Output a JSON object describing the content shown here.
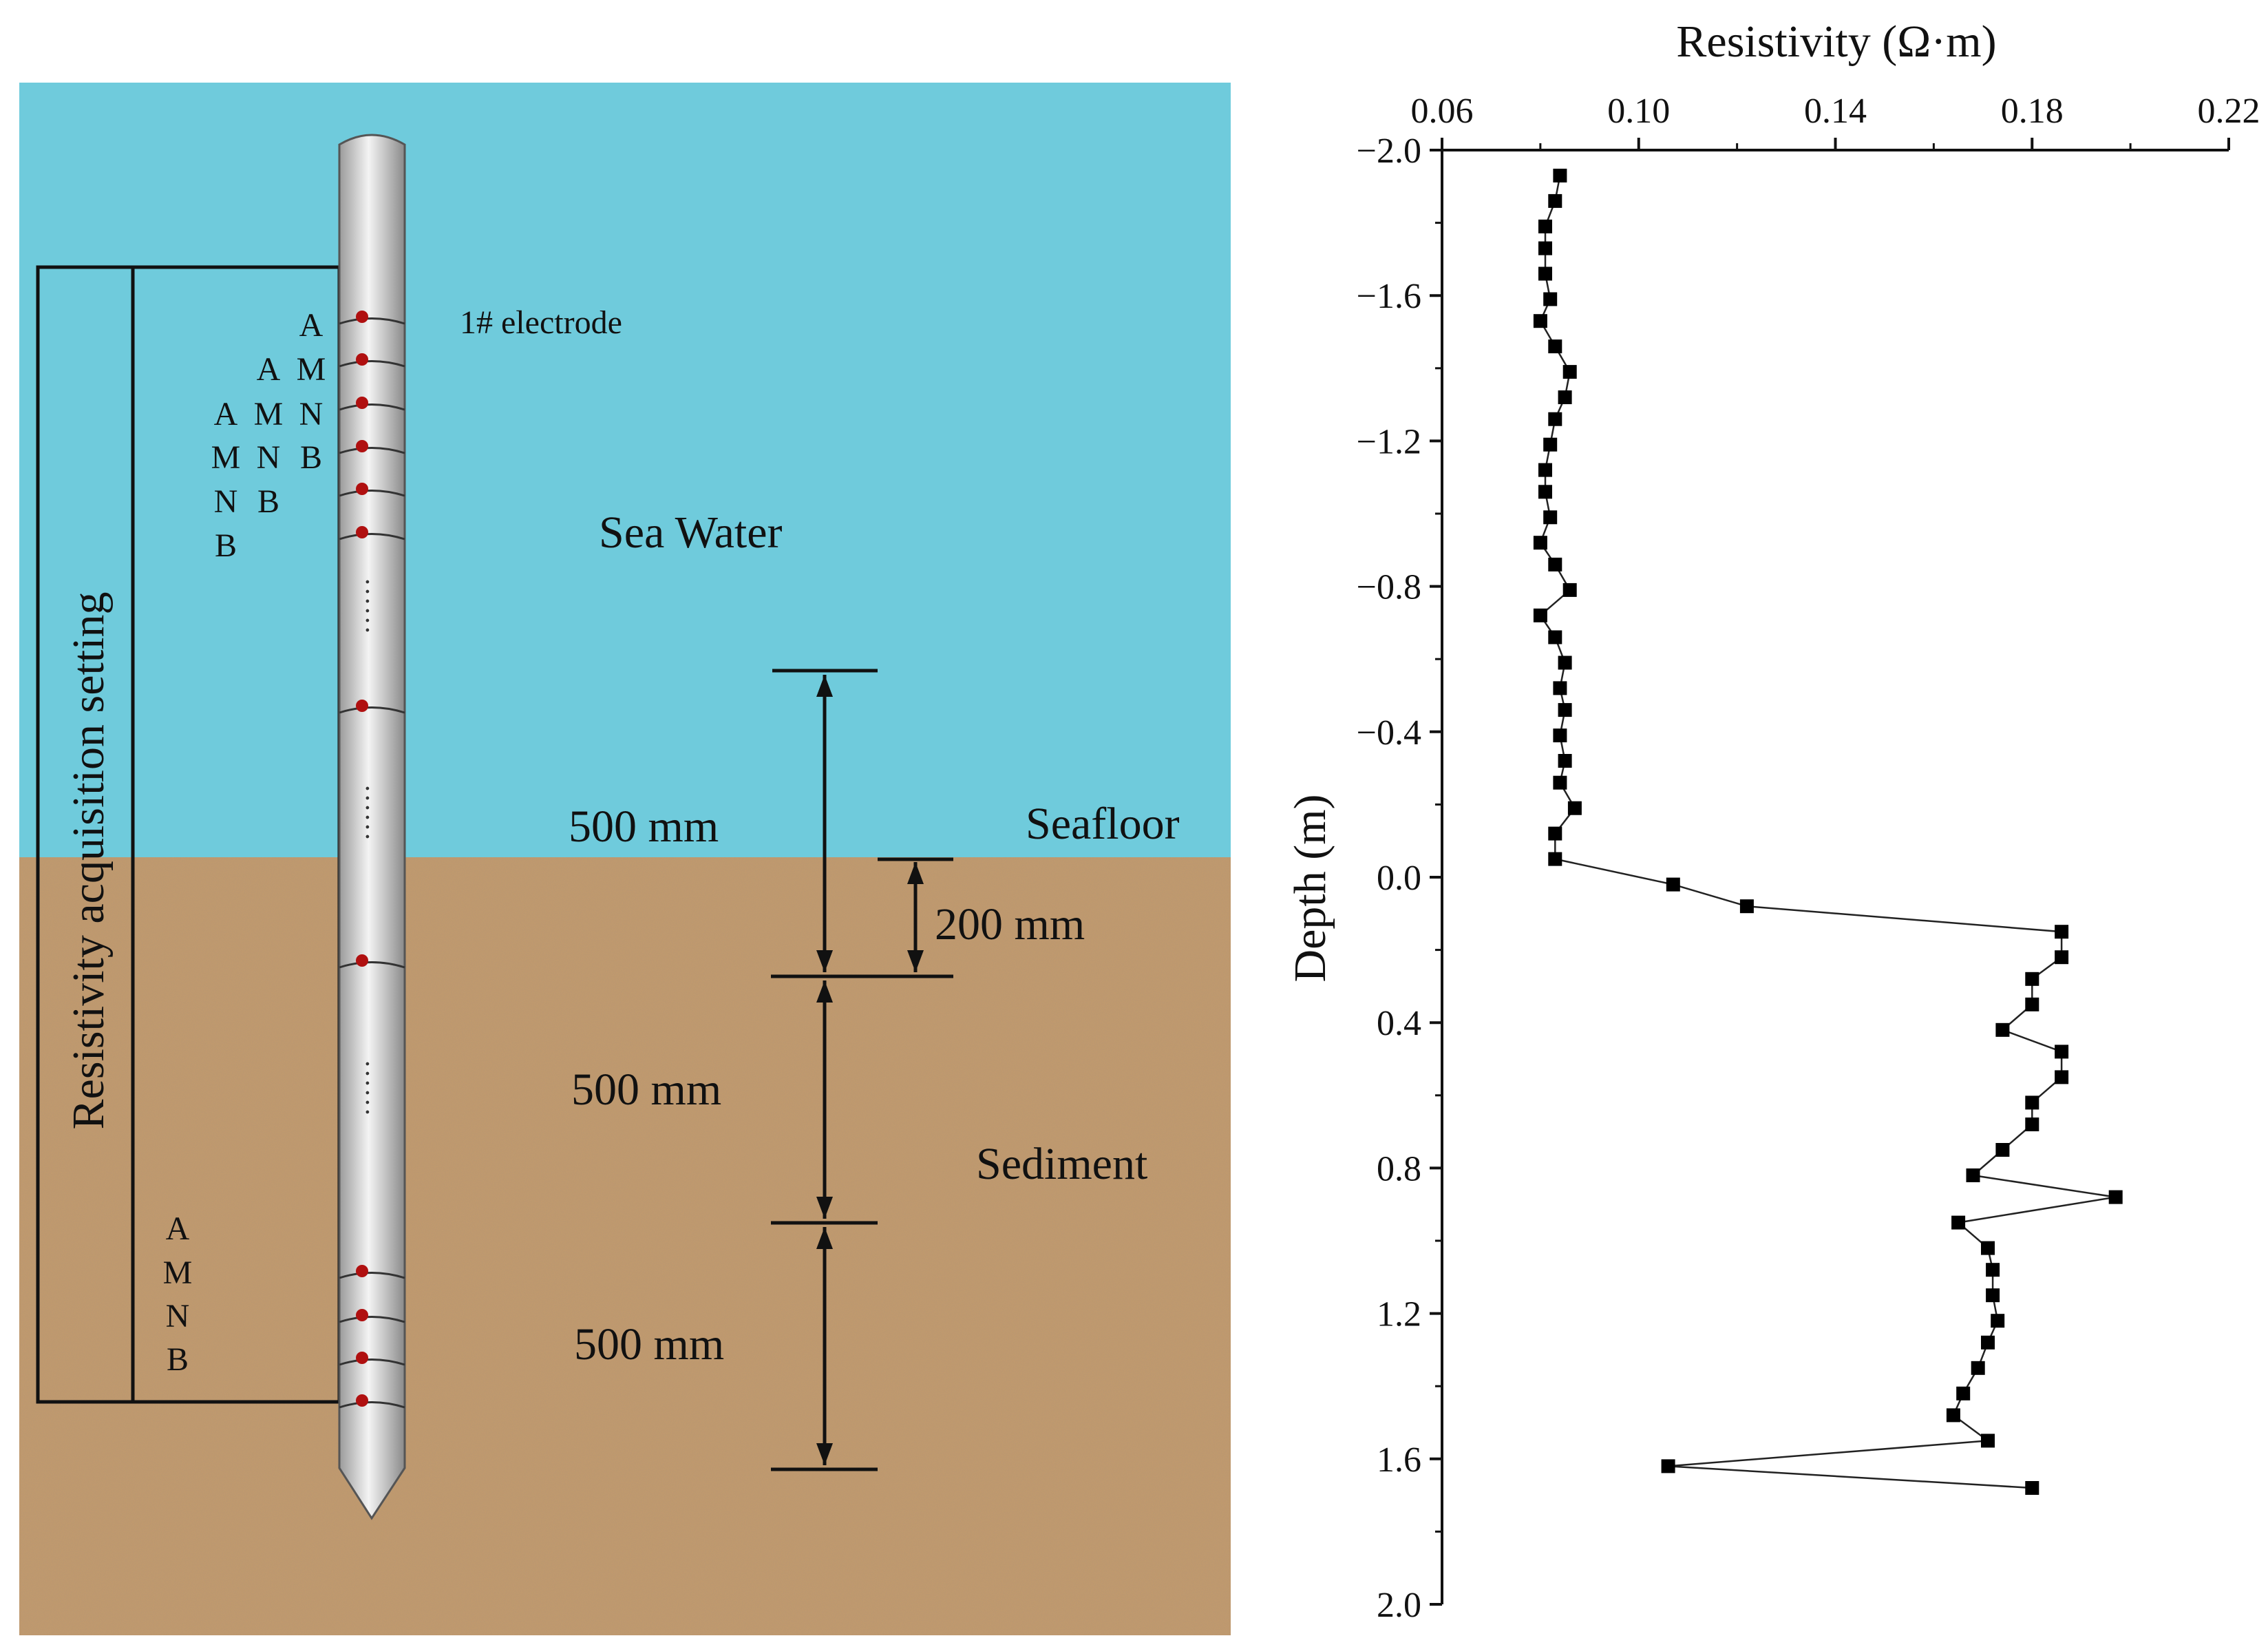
{
  "diagram": {
    "sea_label": "Sea Water",
    "seafloor_label": "Seafloor",
    "sediment_label": "Sediment",
    "setting_label": "Resistivity acquisition setting",
    "electrode_label": "1# electrode",
    "dim_top": "500 mm",
    "dim_middle": "500 mm",
    "dim_bottom": "500 mm",
    "dim_small": "200 mm",
    "electrode_groups": [
      [
        "A"
      ],
      [
        "A",
        "M"
      ],
      [
        "A",
        "M",
        "N"
      ],
      [
        "M",
        "N",
        "B"
      ],
      [
        "N",
        "B"
      ],
      [
        "B"
      ]
    ],
    "bottom_group": [
      "A",
      "M",
      "N",
      "B"
    ],
    "dots": "......",
    "colors": {
      "sea": "#6fcbdc",
      "sediment": "#c49a6c",
      "electrode": "#b01010",
      "probe": "#d8d8d8"
    }
  },
  "chart_data": {
    "type": "scatter",
    "title": "Resistivity (Ω·m)",
    "xlabel": "Resistivity (Ω·m)",
    "ylabel": "Depth (m)",
    "xlim": [
      0.06,
      0.22
    ],
    "ylim": [
      -2.0,
      2.0
    ],
    "y_inverted": true,
    "x_axis_position": "top",
    "x_ticks": [
      "0.06",
      "0.10",
      "0.14",
      "0.18",
      "0.22"
    ],
    "y_ticks": [
      "−2.0",
      "−1.6",
      "−1.2",
      "−0.8",
      "−0.4",
      "0.0",
      "0.4",
      "0.8",
      "1.2",
      "1.6",
      "2.0"
    ],
    "marker": "square",
    "line": "connected",
    "grid": false,
    "series": [
      {
        "points": [
          [
            0.084,
            -1.93
          ],
          [
            0.083,
            -1.86
          ],
          [
            0.081,
            -1.79
          ],
          [
            0.081,
            -1.73
          ],
          [
            0.081,
            -1.66
          ],
          [
            0.082,
            -1.59
          ],
          [
            0.08,
            -1.53
          ],
          [
            0.083,
            -1.46
          ],
          [
            0.086,
            -1.39
          ],
          [
            0.085,
            -1.32
          ],
          [
            0.083,
            -1.26
          ],
          [
            0.082,
            -1.19
          ],
          [
            0.081,
            -1.12
          ],
          [
            0.081,
            -1.06
          ],
          [
            0.082,
            -0.99
          ],
          [
            0.08,
            -0.92
          ],
          [
            0.083,
            -0.86
          ],
          [
            0.086,
            -0.79
          ],
          [
            0.08,
            -0.72
          ],
          [
            0.083,
            -0.66
          ],
          [
            0.085,
            -0.59
          ],
          [
            0.084,
            -0.52
          ],
          [
            0.085,
            -0.46
          ],
          [
            0.084,
            -0.39
          ],
          [
            0.085,
            -0.32
          ],
          [
            0.084,
            -0.26
          ],
          [
            0.087,
            -0.19
          ],
          [
            0.083,
            -0.12
          ],
          [
            0.083,
            -0.05
          ],
          [
            0.107,
            0.02
          ],
          [
            0.122,
            0.08
          ],
          [
            0.186,
            0.15
          ],
          [
            0.186,
            0.22
          ],
          [
            0.18,
            0.28
          ],
          [
            0.18,
            0.35
          ],
          [
            0.174,
            0.42
          ],
          [
            0.186,
            0.48
          ],
          [
            0.186,
            0.55
          ],
          [
            0.18,
            0.62
          ],
          [
            0.18,
            0.68
          ],
          [
            0.174,
            0.75
          ],
          [
            0.168,
            0.82
          ],
          [
            0.197,
            0.88
          ],
          [
            0.165,
            0.95
          ],
          [
            0.171,
            1.02
          ],
          [
            0.172,
            1.08
          ],
          [
            0.172,
            1.15
          ],
          [
            0.173,
            1.22
          ],
          [
            0.171,
            1.28
          ],
          [
            0.169,
            1.35
          ],
          [
            0.166,
            1.42
          ],
          [
            0.164,
            1.48
          ],
          [
            0.171,
            1.55
          ],
          [
            0.106,
            1.62
          ],
          [
            0.18,
            1.68
          ]
        ]
      }
    ]
  }
}
